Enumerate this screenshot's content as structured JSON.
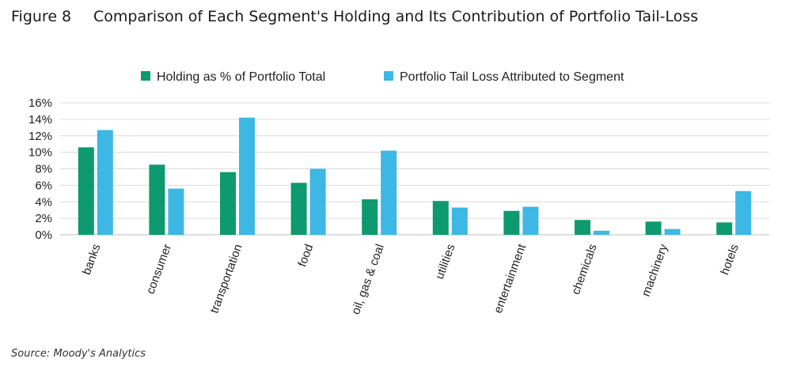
{
  "figure": {
    "number": "Figure 8",
    "title": "Comparison of Each Segment's Holding and Its Contribution of Portfolio Tail-Loss",
    "source": "Source: Moody's Analytics"
  },
  "chart_data": {
    "type": "bar",
    "title": "",
    "xlabel": "",
    "ylabel": "",
    "ylim": [
      0,
      16
    ],
    "ytick_step": 2,
    "y_tick_suffix": "%",
    "grid": true,
    "legend_position": "top",
    "categories": [
      "banks",
      "consumer",
      "transportation",
      "food",
      "oil, gas & coal",
      "utilities",
      "entertainment",
      "chemicals",
      "machinery",
      "hotels"
    ],
    "series": [
      {
        "name": "Holding as % of Portfolio Total",
        "color": "#0c9a6e",
        "values": [
          10.6,
          8.5,
          7.6,
          6.3,
          4.3,
          4.1,
          2.9,
          1.8,
          1.6,
          1.5
        ]
      },
      {
        "name": "Portfolio Tail Loss Attributed to Segment",
        "color": "#3db7e4",
        "values": [
          12.7,
          5.6,
          14.2,
          8.0,
          10.2,
          3.3,
          3.4,
          0.5,
          0.7,
          5.3
        ]
      }
    ]
  }
}
